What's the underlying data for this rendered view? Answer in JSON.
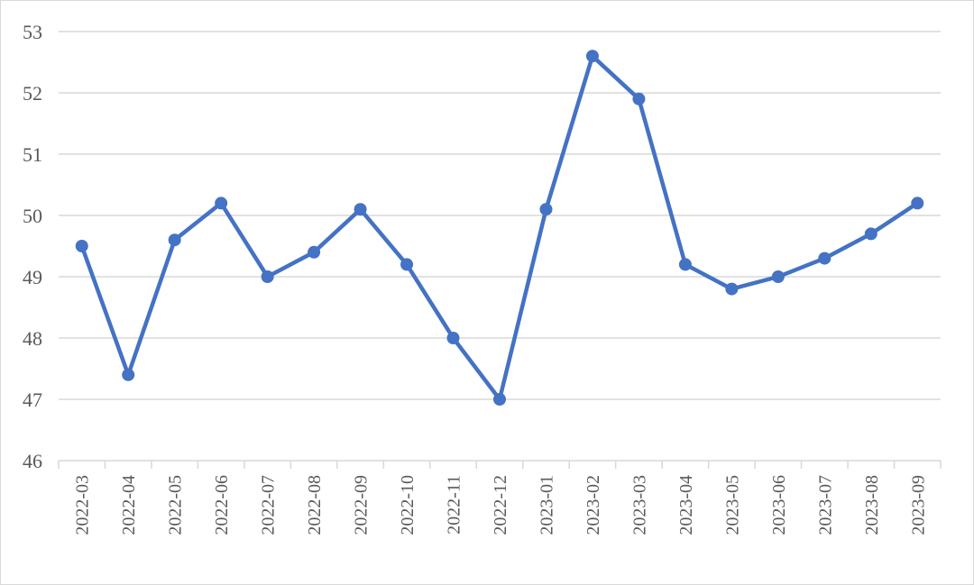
{
  "chart_data": {
    "type": "line",
    "title": "",
    "xlabel": "",
    "ylabel": "",
    "categories": [
      "2022-03",
      "2022-04",
      "2022-05",
      "2022-06",
      "2022-07",
      "2022-08",
      "2022-09",
      "2022-10",
      "2022-11",
      "2022-12",
      "2023-01",
      "2023-02",
      "2023-03",
      "2023-04",
      "2023-05",
      "2023-06",
      "2023-07",
      "2023-08",
      "2023-09"
    ],
    "series": [
      {
        "values": [
          49.5,
          47.4,
          49.6,
          50.2,
          49.0,
          49.4,
          50.1,
          49.2,
          48.0,
          47.0,
          50.1,
          52.6,
          51.9,
          49.2,
          48.8,
          49.0,
          49.3,
          49.7,
          50.2
        ]
      }
    ],
    "ylim": [
      46,
      53
    ],
    "yticks": [
      "46",
      "47",
      "48",
      "49",
      "50",
      "51",
      "52",
      "53"
    ],
    "grid": true,
    "legend": "none",
    "colors": {
      "line": "#4472C4",
      "grid": "#d9d9d9",
      "text": "#595959"
    }
  }
}
